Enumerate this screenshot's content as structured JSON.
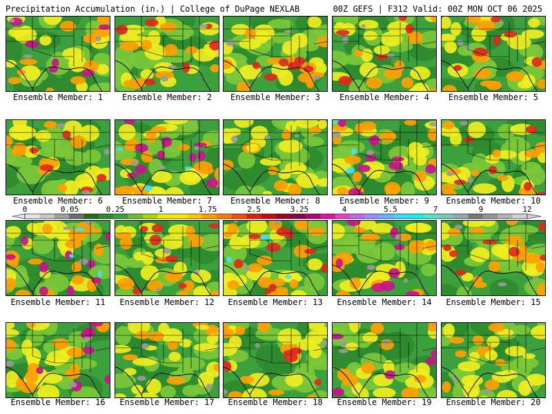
{
  "header": {
    "left": "Precipitation Accumulation (in.) | College of DuPage NEXLAB",
    "right": "00Z GEFS | F312 Valid: 00Z MON OCT 06 2025"
  },
  "colorbar": {
    "tick_labels": [
      "0",
      "0.05",
      "0.25",
      "1",
      "1.75",
      "2.5",
      "3.25",
      "4",
      "5.5",
      "7",
      "9",
      "12"
    ],
    "colors": [
      "#e6e6e6",
      "#c8c8c8",
      "#a0a0a0",
      "#6e6e6e",
      "#1e6e1e",
      "#2e8b2e",
      "#3ca03c",
      "#6cbe2a",
      "#a8d800",
      "#e8f000",
      "#ffe600",
      "#ffc800",
      "#ffa000",
      "#ff7800",
      "#ff4a00",
      "#e81e00",
      "#c80a14",
      "#a00028",
      "#8c0046",
      "#b4006e",
      "#dc14a0",
      "#f03cc8",
      "#c864f0",
      "#9690ff",
      "#64b4ff",
      "#3cdcff",
      "#14f0f0",
      "#50e6c8",
      "#78c8b4",
      "#96aaaa",
      "#787878",
      "#969696",
      "#b4b4b4",
      "#d2d2d2"
    ],
    "field_colors": {
      "dark_green": "#2f8a2f",
      "green": "#3ca03c",
      "light_green": "#7cc83a",
      "yellow": "#f0ee20",
      "orange": "#ffa000",
      "red": "#e0281e",
      "magenta": "#c8148c",
      "cyan": "#46e0f0",
      "gray": "#9a9a9a"
    }
  },
  "panels": [
    {
      "label": "Ensemble Member: 1"
    },
    {
      "label": "Ensemble Member: 2"
    },
    {
      "label": "Ensemble Member: 3"
    },
    {
      "label": "Ensemble Member: 4"
    },
    {
      "label": "Ensemble Member: 5"
    },
    {
      "label": "Ensemble Member: 6"
    },
    {
      "label": "Ensemble Member: 7"
    },
    {
      "label": "Ensemble Member: 8"
    },
    {
      "label": "Ensemble Member: 9"
    },
    {
      "label": "Ensemble Member: 10"
    },
    {
      "label": "Ensemble Member: 11"
    },
    {
      "label": "Ensemble Member: 12"
    },
    {
      "label": "Ensemble Member: 13"
    },
    {
      "label": "Ensemble Member: 14"
    },
    {
      "label": "Ensemble Member: 15"
    },
    {
      "label": "Ensemble Member: 16"
    },
    {
      "label": "Ensemble Member: 17"
    },
    {
      "label": "Ensemble Member: 18"
    },
    {
      "label": "Ensemble Member: 19"
    },
    {
      "label": "Ensemble Member: 20"
    }
  ]
}
